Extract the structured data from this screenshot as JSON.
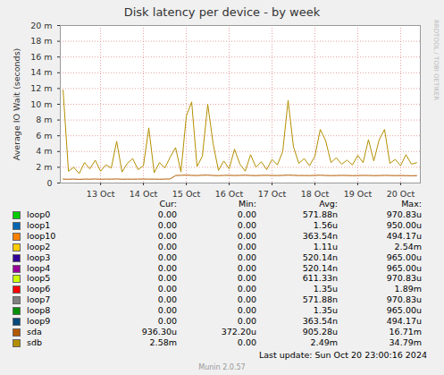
{
  "chart_data": {
    "type": "line",
    "title": "Disk latency per device - by week",
    "y_label": "Average IO Wait (seconds)",
    "x": [
      12.625,
      12.75,
      12.875,
      13.0,
      13.125,
      13.25,
      13.375,
      13.5,
      13.625,
      13.75,
      13.875,
      14.0,
      14.125,
      14.25,
      14.375,
      14.5,
      14.625,
      14.75,
      14.875,
      15.0,
      15.125,
      15.25,
      15.375,
      15.5,
      15.625,
      15.75,
      15.875,
      16.0,
      16.125,
      16.25,
      16.375,
      16.5,
      16.625,
      16.75,
      16.875,
      17.0,
      17.125,
      17.25,
      17.375,
      17.5,
      17.625,
      17.75,
      17.875,
      18.0,
      18.125,
      18.25,
      18.375,
      18.5,
      18.625,
      18.75,
      18.875,
      19.0,
      19.125,
      19.25,
      19.375,
      19.5,
      19.625,
      19.75,
      19.875,
      20.0,
      20.125,
      20.25,
      20.375,
      20.5,
      20.625,
      20.75,
      20.875
    ],
    "xlim": [
      12.56,
      20.96
    ],
    "xticks": [
      {
        "value": 13.5,
        "label": "13 Oct"
      },
      {
        "value": 14.5,
        "label": "14 Oct"
      },
      {
        "value": 15.5,
        "label": "15 Oct"
      },
      {
        "value": 16.5,
        "label": "16 Oct"
      },
      {
        "value": 17.5,
        "label": "17 Oct"
      },
      {
        "value": 18.5,
        "label": "18 Oct"
      },
      {
        "value": 19.5,
        "label": "19 Oct"
      },
      {
        "value": 20.5,
        "label": "20 Oct"
      }
    ],
    "ylim": [
      0,
      0.02
    ],
    "yticks": [
      0,
      {
        "value": 0.002,
        "label": "2 m"
      },
      {
        "value": 0.004,
        "label": "4 m"
      },
      {
        "value": 0.006,
        "label": "6 m"
      },
      {
        "value": 0.008,
        "label": "8 m"
      },
      {
        "value": 0.01,
        "label": "10 m"
      },
      {
        "value": 0.012,
        "label": "12 m"
      },
      {
        "value": 0.014,
        "label": "14 m"
      },
      {
        "value": 0.016,
        "label": "16 m"
      },
      {
        "value": 0.018,
        "label": "18 m"
      },
      {
        "value": 0.02,
        "label": "20 m"
      }
    ],
    "grid": true,
    "series": [
      {
        "name": "sda",
        "color": "#B35A00",
        "values": [
          0.0005,
          0.00048,
          0.0005,
          0.00047,
          0.0005,
          0.00049,
          0.00051,
          0.00048,
          0.0005,
          0.00049,
          0.00052,
          0.00048,
          0.0005,
          0.00049,
          0.0005,
          0.00051,
          0.00049,
          0.0005,
          0.00048,
          0.0005,
          0.00052,
          0.00095,
          0.00098,
          0.001,
          0.00097,
          0.00095,
          0.00099,
          0.001,
          0.00096,
          0.00094,
          0.00097,
          0.00098,
          0.00095,
          0.00097,
          0.00099,
          0.00096,
          0.00094,
          0.00097,
          0.00098,
          0.00096,
          0.00095,
          0.00097,
          0.001,
          0.00098,
          0.00095,
          0.00096,
          0.00094,
          0.00097,
          0.00099,
          0.00096,
          0.00094,
          0.00095,
          0.00097,
          0.00096,
          0.00094,
          0.00095,
          0.00097,
          0.00096,
          0.00094,
          0.00095,
          0.00097,
          0.00096,
          0.00094,
          0.00095,
          0.00094,
          0.00093,
          0.0009363
        ]
      },
      {
        "name": "sdb",
        "color": "#B38F00",
        "values": [
          0.0118,
          0.0015,
          0.002,
          0.0012,
          0.0026,
          0.0018,
          0.0029,
          0.0015,
          0.0023,
          0.0019,
          0.0053,
          0.0014,
          0.0025,
          0.0031,
          0.0017,
          0.0022,
          0.007,
          0.0013,
          0.0026,
          0.0019,
          0.0033,
          0.0045,
          0.0014,
          0.0085,
          0.0103,
          0.0021,
          0.0034,
          0.01,
          0.005,
          0.0016,
          0.0028,
          0.0018,
          0.0043,
          0.0024,
          0.0015,
          0.0036,
          0.002,
          0.0027,
          0.0017,
          0.003,
          0.0023,
          0.004,
          0.0105,
          0.0046,
          0.0025,
          0.0031,
          0.0022,
          0.0034,
          0.0068,
          0.0054,
          0.0026,
          0.0032,
          0.0024,
          0.0029,
          0.0023,
          0.0035,
          0.0026,
          0.0055,
          0.0028,
          0.0055,
          0.0068,
          0.0025,
          0.003,
          0.0022,
          0.0036,
          0.0024,
          0.00258
        ]
      }
    ],
    "summary": {
      "columns": [
        "Cur:",
        "Min:",
        "Avg:",
        "Max:"
      ],
      "rows": [
        {
          "name": "loop0",
          "color": "#00CC00",
          "cells": [
            "0.00",
            "0.00",
            "571.88n",
            "970.83u"
          ]
        },
        {
          "name": "loop1",
          "color": "#0066B3",
          "cells": [
            "0.00",
            "0.00",
            "1.56u",
            "950.00u"
          ]
        },
        {
          "name": "loop10",
          "color": "#FF8000",
          "cells": [
            "0.00",
            "0.00",
            "363.54n",
            "494.17u"
          ]
        },
        {
          "name": "loop2",
          "color": "#FFCC00",
          "cells": [
            "0.00",
            "0.00",
            "1.11u",
            "2.54m"
          ]
        },
        {
          "name": "loop3",
          "color": "#330099",
          "cells": [
            "0.00",
            "0.00",
            "520.14n",
            "965.00u"
          ]
        },
        {
          "name": "loop4",
          "color": "#990099",
          "cells": [
            "0.00",
            "0.00",
            "520.14n",
            "965.00u"
          ]
        },
        {
          "name": "loop5",
          "color": "#CCFF00",
          "cells": [
            "0.00",
            "0.00",
            "611.33n",
            "970.83u"
          ]
        },
        {
          "name": "loop6",
          "color": "#FF0000",
          "cells": [
            "0.00",
            "0.00",
            "1.35u",
            "1.89m"
          ]
        },
        {
          "name": "loop7",
          "color": "#808080",
          "cells": [
            "0.00",
            "0.00",
            "571.88n",
            "970.83u"
          ]
        },
        {
          "name": "loop8",
          "color": "#008F00",
          "cells": [
            "0.00",
            "0.00",
            "1.35u",
            "965.00u"
          ]
        },
        {
          "name": "loop9",
          "color": "#00487D",
          "cells": [
            "0.00",
            "0.00",
            "363.54n",
            "494.17u"
          ]
        },
        {
          "name": "sda",
          "color": "#B35A00",
          "cells": [
            "936.30u",
            "372.20u",
            "905.28u",
            "16.71m"
          ]
        },
        {
          "name": "sdb",
          "color": "#B38F00",
          "cells": [
            "2.58m",
            "0.00",
            "2.49m",
            "34.79m"
          ]
        }
      ]
    },
    "last_update": "Last update: Sun Oct 20 23:00:16 2024",
    "footer": "Munin 2.0.57",
    "watermark": "RRDTOOL / TOBI OETIKER"
  }
}
